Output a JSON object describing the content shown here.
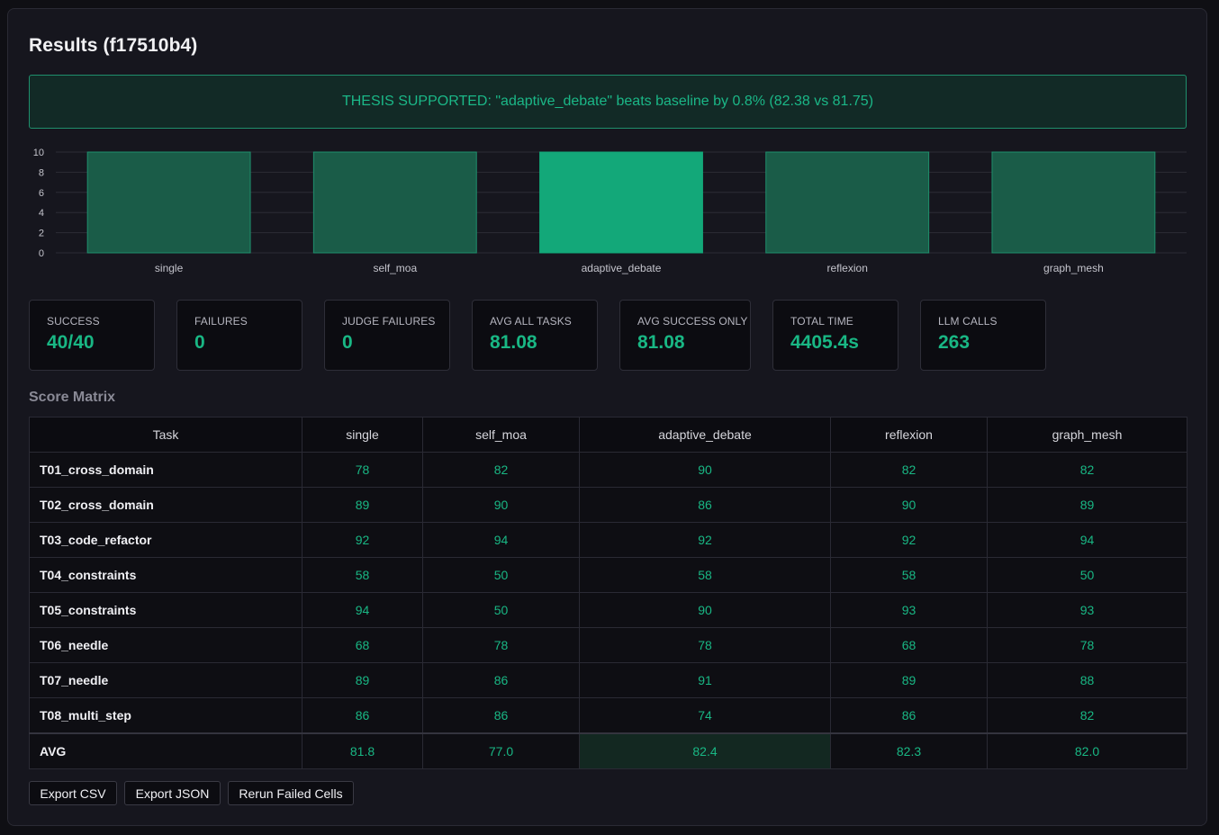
{
  "title": "Results (f17510b4)",
  "banner": "THESIS SUPPORTED: \"adaptive_debate\" beats baseline by 0.8% (82.38 vs 81.75)",
  "colors": {
    "accent": "#19b784",
    "bar": "#1a5c48",
    "bar_highlight": "#13a879",
    "banner_bg": "#122a26"
  },
  "chart_data": {
    "type": "bar",
    "categories": [
      "single",
      "self_moa",
      "adaptive_debate",
      "reflexion",
      "graph_mesh"
    ],
    "values": [
      10,
      10,
      10,
      10,
      10
    ],
    "highlight_index": 2,
    "yticks": [
      "0",
      "2",
      "4",
      "6",
      "8",
      "10"
    ],
    "ylim": [
      0,
      10
    ],
    "grid": true
  },
  "stats": [
    {
      "label": "SUCCESS",
      "value": "40/40"
    },
    {
      "label": "FAILURES",
      "value": "0"
    },
    {
      "label": "JUDGE FAILURES",
      "value": "0"
    },
    {
      "label": "AVG ALL TASKS",
      "value": "81.08"
    },
    {
      "label": "AVG SUCCESS ONLY",
      "value": "81.08"
    },
    {
      "label": "TOTAL TIME",
      "value": "4405.4s"
    },
    {
      "label": "LLM CALLS",
      "value": "263"
    }
  ],
  "matrix": {
    "title": "Score Matrix",
    "headers": [
      "Task",
      "single",
      "self_moa",
      "adaptive_debate",
      "reflexion",
      "graph_mesh"
    ],
    "rows": [
      [
        "T01_cross_domain",
        "78",
        "82",
        "90",
        "82",
        "82"
      ],
      [
        "T02_cross_domain",
        "89",
        "90",
        "86",
        "90",
        "89"
      ],
      [
        "T03_code_refactor",
        "92",
        "94",
        "92",
        "92",
        "94"
      ],
      [
        "T04_constraints",
        "58",
        "50",
        "58",
        "58",
        "50"
      ],
      [
        "T05_constraints",
        "94",
        "50",
        "90",
        "93",
        "93"
      ],
      [
        "T06_needle",
        "68",
        "78",
        "78",
        "68",
        "78"
      ],
      [
        "T07_needle",
        "89",
        "86",
        "91",
        "89",
        "88"
      ],
      [
        "T08_multi_step",
        "86",
        "86",
        "74",
        "86",
        "82"
      ]
    ],
    "avg": [
      "AVG",
      "81.8",
      "77.0",
      "82.4",
      "82.3",
      "82.0"
    ],
    "avg_highlight_index": 3
  },
  "buttons": {
    "export_csv": "Export CSV",
    "export_json": "Export JSON",
    "rerun_failed": "Rerun Failed Cells"
  }
}
